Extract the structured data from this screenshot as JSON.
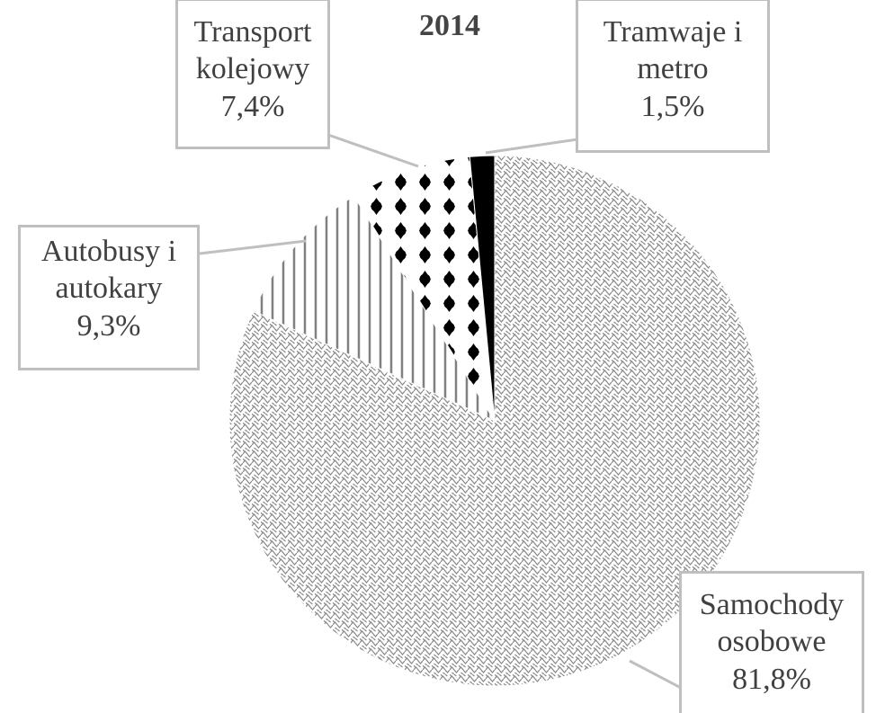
{
  "chart_data": {
    "type": "pie",
    "title": "2014",
    "categories": [
      "Samochody osobowe",
      "Autobusy i autokary",
      "Transport kolejowy",
      "Tramwaje i metro"
    ],
    "values": [
      81.8,
      9.3,
      7.4,
      1.5
    ],
    "value_labels": [
      "81,8%",
      "9,3%",
      "7,4%",
      "1,5%"
    ]
  }
}
